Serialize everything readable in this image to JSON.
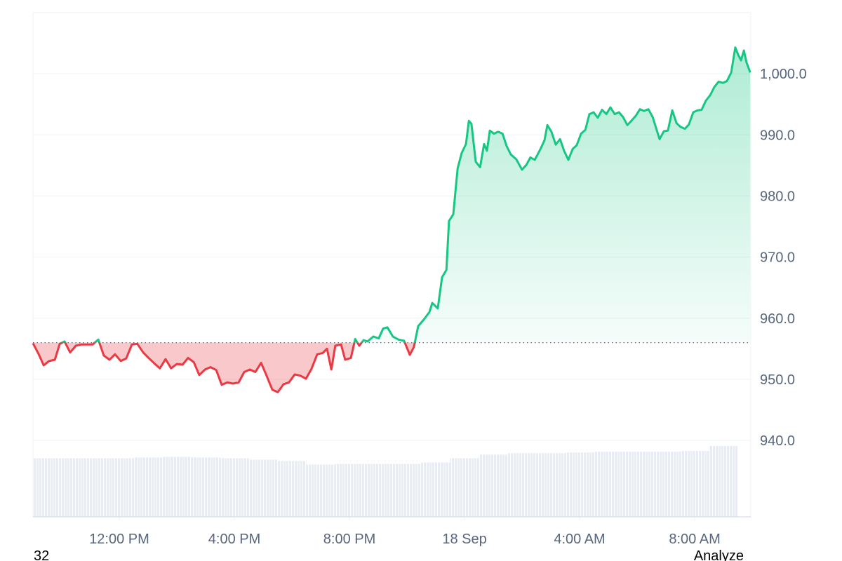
{
  "chart_data": {
    "type": "line",
    "x": [
      9.0,
      9.2,
      9.37,
      9.56,
      9.76,
      9.93,
      10.1,
      10.29,
      10.49,
      10.68,
      10.88,
      11.07,
      11.27,
      11.46,
      11.66,
      11.85,
      12.05,
      12.24,
      12.44,
      12.63,
      12.83,
      13.02,
      13.22,
      13.41,
      13.61,
      13.8,
      14.0,
      14.2,
      14.39,
      14.59,
      14.78,
      14.98,
      15.17,
      15.37,
      15.56,
      15.76,
      15.95,
      16.15,
      16.34,
      16.54,
      16.73,
      16.93,
      17.12,
      17.32,
      17.51,
      17.71,
      17.9,
      18.1,
      18.29,
      18.49,
      18.68,
      18.88,
      19.07,
      19.22,
      19.37,
      19.51,
      19.71,
      19.85,
      20.05,
      20.2,
      20.34,
      20.49,
      20.63,
      20.83,
      21.02,
      21.17,
      21.32,
      21.51,
      21.71,
      21.9,
      22.1,
      22.24,
      22.39,
      22.59,
      22.78,
      22.88,
      23.07,
      23.22,
      23.37,
      23.46,
      23.61,
      23.76,
      23.9,
      24.05,
      24.15,
      24.24,
      24.39,
      24.54,
      24.68,
      24.78,
      24.88,
      25.02,
      25.17,
      25.32,
      25.46,
      25.61,
      25.8,
      26.0,
      26.15,
      26.29,
      26.44,
      26.63,
      26.78,
      26.88,
      27.02,
      27.17,
      27.32,
      27.46,
      27.61,
      27.76,
      27.9,
      28.05,
      28.2,
      28.34,
      28.49,
      28.63,
      28.78,
      28.93,
      29.07,
      29.22,
      29.37,
      29.51,
      29.66,
      29.8,
      29.95,
      30.1,
      30.24,
      30.39,
      30.54,
      30.68,
      30.78,
      30.93,
      31.07,
      31.22,
      31.37,
      31.51,
      31.66,
      31.8,
      31.95,
      32.1,
      32.24,
      32.39,
      32.54,
      32.68,
      32.83,
      32.98,
      33.12,
      33.27,
      33.41,
      33.51,
      33.61,
      33.71,
      33.8,
      33.93
    ],
    "values": [
      955.9,
      954.1,
      952.3,
      953.0,
      953.2,
      955.8,
      956.2,
      954.4,
      955.5,
      955.7,
      955.7,
      955.7,
      956.5,
      953.9,
      953.2,
      954.1,
      953.0,
      953.4,
      955.7,
      955.8,
      954.4,
      953.5,
      952.6,
      951.8,
      953.3,
      951.8,
      952.5,
      952.4,
      953.5,
      952.8,
      950.7,
      951.6,
      952.0,
      951.5,
      949.1,
      949.5,
      949.3,
      949.5,
      951.2,
      951.6,
      951.2,
      952.7,
      950.6,
      948.3,
      947.9,
      949.2,
      949.5,
      950.8,
      950.6,
      950.1,
      951.7,
      954.1,
      954.3,
      955.0,
      951.6,
      955.5,
      955.7,
      953.2,
      953.5,
      956.6,
      955.5,
      956.4,
      956.2,
      957.0,
      956.7,
      958.3,
      958.5,
      957.0,
      956.5,
      956.3,
      954.0,
      955.3,
      958.7,
      959.8,
      961.0,
      962.5,
      961.6,
      966.7,
      967.9,
      975.9,
      977.0,
      984.5,
      987.0,
      988.5,
      992.3,
      991.8,
      985.6,
      984.7,
      988.5,
      987.4,
      990.7,
      990.2,
      990.5,
      990.2,
      988.2,
      986.8,
      986.0,
      984.3,
      985.1,
      986.3,
      985.9,
      987.6,
      989.1,
      991.6,
      990.5,
      988.4,
      989.3,
      987.4,
      985.9,
      987.7,
      988.3,
      990.2,
      990.8,
      993.4,
      993.7,
      992.8,
      994.1,
      993.4,
      994.5,
      993.4,
      993.7,
      992.9,
      991.6,
      992.3,
      993.1,
      994.2,
      993.9,
      994.2,
      992.9,
      990.8,
      989.3,
      990.6,
      990.7,
      994.0,
      991.9,
      991.3,
      991.0,
      991.7,
      993.7,
      994.0,
      994.1,
      995.6,
      996.5,
      997.8,
      998.7,
      998.5,
      998.8,
      1000.2,
      1004.3,
      1003.1,
      1002.2,
      1003.8,
      1001.9,
      1000.2
    ],
    "baseline": 956.0,
    "up_color": "#16c784",
    "down_color": "#ea3943",
    "volume": {
      "x": [
        9,
        10,
        11,
        12,
        13,
        14,
        15,
        16,
        17,
        18,
        19,
        20,
        21,
        22,
        23,
        24,
        25,
        26,
        27,
        28,
        29,
        30,
        31,
        32,
        33
      ],
      "values": [
        82,
        82,
        82,
        82,
        83,
        84,
        83,
        82,
        80,
        78,
        73,
        74,
        74,
        74,
        76,
        82,
        87,
        89,
        89,
        90,
        91,
        91,
        91,
        92,
        99
      ],
      "color": "#e9edf1"
    },
    "xlim": [
      9,
      33.95
    ],
    "xticks": [
      {
        "value": 12,
        "label": "12:00 PM"
      },
      {
        "value": 16,
        "label": "4:00 PM"
      },
      {
        "value": 20,
        "label": "8:00 PM"
      },
      {
        "value": 24,
        "label": "18 Sep"
      },
      {
        "value": 28,
        "label": "4:00 AM"
      },
      {
        "value": 32,
        "label": "8:00 AM"
      }
    ],
    "ylim": [
      927.5,
      1010
    ],
    "yticks": [
      {
        "value": 940,
        "label": "940.0"
      },
      {
        "value": 950,
        "label": "950.0"
      },
      {
        "value": 960,
        "label": "960.0"
      },
      {
        "value": 970,
        "label": "970.0"
      },
      {
        "value": 980,
        "label": "980.0"
      },
      {
        "value": 990,
        "label": "990.0"
      },
      {
        "value": 1000,
        "label": "1,000.0"
      }
    ],
    "grid": true,
    "footer_left": "32",
    "footer_right": "Analyze"
  }
}
